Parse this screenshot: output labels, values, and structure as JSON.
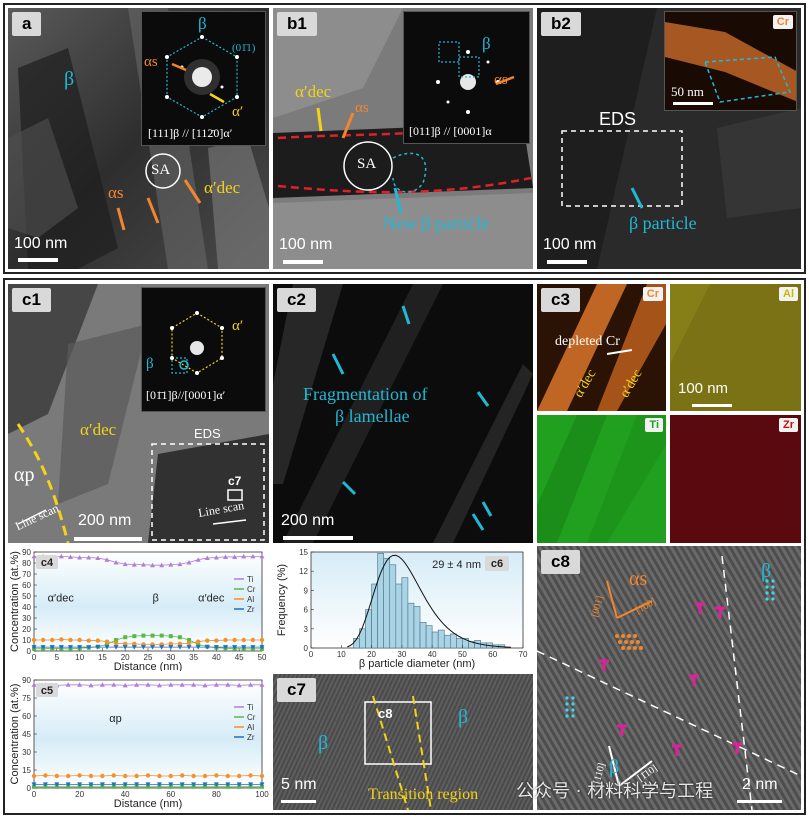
{
  "panels": {
    "a": {
      "tag": "a",
      "beta": "β",
      "inset_beta": "β",
      "inset_plane": "(01̄1)",
      "alpha_s": "αs",
      "alpha_prime": "α′",
      "inset_zone": "[111]β // [112̄0]α′",
      "sa": "SA",
      "alpha_s2": "αs",
      "alpha_dec": "α′dec",
      "scalebar": "100 nm"
    },
    "b1": {
      "tag": "b1",
      "inset_beta": "β",
      "inset_alpha_s": "αs",
      "inset_zone": "[011]β // [0001]α",
      "alpha_dec": "α′dec",
      "alpha_s": "αs",
      "sa": "SA",
      "new_beta": "New β particle",
      "scalebar": "100 nm"
    },
    "b2": {
      "tag": "b2",
      "inset_element": "Cr",
      "inset_scalebar": "50 nm",
      "eds": "EDS",
      "beta_particle": "β particle",
      "scalebar": "100 nm"
    },
    "c1": {
      "tag": "c1",
      "alpha_prime": "α′",
      "beta": "β",
      "inset_zone": "[01̄1]β//[0001]α′",
      "alpha_dec": "α′dec",
      "eds": "EDS",
      "c7": "c7",
      "alpha_p": "αp",
      "line_scan_1": "Line scan",
      "line_scan_2": "Line scan",
      "scalebar": "200 nm"
    },
    "c2": {
      "tag": "c2",
      "caption_line1": "Fragmentation of",
      "caption_line2": "β lamellae",
      "scalebar": "200 nm"
    },
    "c3": {
      "tag": "c3",
      "maps": [
        "Cr",
        "Al",
        "Ti",
        "Zr"
      ],
      "depleted": "depleted Cr",
      "alpha_dec_1": "α′dec",
      "alpha_dec_2": "α′dec",
      "scalebar": "100 nm"
    },
    "c7": {
      "tag": "c7",
      "c8": "c8",
      "beta_left": "β",
      "beta_right": "β",
      "transition": "Transition region",
      "scalebar": "5 nm"
    },
    "c8": {
      "tag": "c8",
      "alpha_s": "αs",
      "beta_top": "β",
      "beta_bottom": "β",
      "dir1": "[001]",
      "dir2": "[100]",
      "dir3": "[110]",
      "dir4": "[1̄10]",
      "scalebar": "2 nm"
    }
  },
  "watermark": "公众号 · 材料科学与工程",
  "colors": {
    "cyan": "#21b8d6",
    "yellow": "#f2d318",
    "orange": "#f2862d",
    "red_dash": "#e0202a",
    "magenta": "#e0209a"
  },
  "chart_data": [
    {
      "id": "c4",
      "type": "line",
      "tag": "c4",
      "xlabel": "Distance (nm)",
      "ylabel": "Concentration (at.%)",
      "xlim": [
        0,
        50
      ],
      "ylim": [
        0,
        90
      ],
      "xticks": [
        0,
        5,
        10,
        15,
        20,
        25,
        30,
        35,
        40,
        45,
        50
      ],
      "yticks": [
        0,
        10,
        20,
        30,
        40,
        50,
        60,
        70,
        80,
        90
      ],
      "annotations": [
        "α′dec",
        "β",
        "α′dec"
      ],
      "x": [
        0,
        2,
        4,
        6,
        8,
        10,
        12,
        14,
        16,
        18,
        20,
        22,
        24,
        26,
        28,
        30,
        32,
        34,
        36,
        38,
        40,
        42,
        44,
        46,
        48,
        50
      ],
      "series": [
        {
          "name": "Ti",
          "color": "#b07fd6",
          "values": [
            86,
            86,
            85.5,
            86,
            85.5,
            85,
            85,
            84.5,
            83,
            80.5,
            79,
            78.5,
            78.5,
            78,
            78,
            78.5,
            79,
            80.5,
            83,
            84.5,
            85,
            85.5,
            85.5,
            86,
            86,
            86
          ]
        },
        {
          "name": "Cr",
          "color": "#5ab84a",
          "values": [
            2,
            2,
            2.5,
            2,
            2,
            2.5,
            3,
            4,
            6,
            10,
            12.5,
            13.5,
            14,
            14,
            14,
            13.5,
            12.5,
            10,
            6,
            4,
            3,
            2.5,
            2,
            2,
            2,
            2
          ]
        },
        {
          "name": "Al",
          "color": "#f5902a",
          "values": [
            10,
            10,
            10,
            10.5,
            10,
            10,
            9.5,
            9.5,
            8.5,
            7,
            6.5,
            6.5,
            6,
            6,
            6,
            6.5,
            6.5,
            7,
            8.5,
            9.5,
            9.5,
            10,
            10,
            10,
            10,
            10
          ]
        },
        {
          "name": "Zr",
          "color": "#1f6fc4",
          "values": [
            3.5,
            3.5,
            3.5,
            3.5,
            3.5,
            3.5,
            3.5,
            3.5,
            3.5,
            3.5,
            3.5,
            3.5,
            3.5,
            3.5,
            3.5,
            3.5,
            3.5,
            3.5,
            3.5,
            3.5,
            3.5,
            3.5,
            3.5,
            3.5,
            3.5,
            3.5
          ]
        }
      ]
    },
    {
      "id": "c5",
      "type": "line",
      "tag": "c5",
      "xlabel": "Distance (nm)",
      "ylabel": "Concentration (at.%)",
      "xlim": [
        0,
        100
      ],
      "ylim": [
        0,
        90
      ],
      "xticks": [
        0,
        20,
        40,
        60,
        80,
        100
      ],
      "yticks": [
        0,
        15,
        30,
        45,
        60,
        75,
        90
      ],
      "annotations": [
        "αp"
      ],
      "x": [
        0,
        5,
        10,
        15,
        20,
        25,
        30,
        35,
        40,
        45,
        50,
        55,
        60,
        65,
        70,
        75,
        80,
        85,
        90,
        95,
        100
      ],
      "series": [
        {
          "name": "Ti",
          "color": "#b07fd6",
          "values": [
            86,
            86,
            85.5,
            86,
            86,
            85.5,
            86,
            86,
            85.5,
            86,
            86,
            85.5,
            86,
            86,
            86,
            85.5,
            86,
            86,
            85.5,
            86,
            86
          ]
        },
        {
          "name": "Cr",
          "color": "#5ab84a",
          "values": [
            1,
            1,
            1,
            1,
            1,
            1,
            1,
            1,
            1,
            1,
            1,
            1,
            1,
            1,
            1,
            1,
            1,
            1,
            1,
            1,
            1
          ]
        },
        {
          "name": "Al",
          "color": "#f5902a",
          "values": [
            10,
            10.5,
            10,
            10,
            10.5,
            10,
            10,
            10.5,
            10,
            10,
            10.5,
            10,
            10,
            10.5,
            10,
            10,
            10.5,
            10,
            10,
            10.5,
            10
          ]
        },
        {
          "name": "Zr",
          "color": "#1f6fc4",
          "values": [
            3,
            3,
            3,
            3,
            3,
            3,
            3,
            3,
            3,
            3,
            3,
            3,
            3,
            3,
            3,
            3,
            3,
            3,
            3,
            3,
            3
          ]
        }
      ]
    },
    {
      "id": "c6",
      "type": "bar",
      "tag": "c6",
      "xlabel": "β particle diameter (nm)",
      "ylabel": "Frequency (%)",
      "xlim": [
        0,
        70
      ],
      "ylim": [
        0,
        15
      ],
      "xticks": [
        0,
        10,
        20,
        30,
        40,
        50,
        60,
        70
      ],
      "yticks": [
        0,
        3,
        6,
        9,
        12,
        15
      ],
      "annotation": "29 ± 4 nm",
      "bin_width": 2,
      "bin_start": [
        14,
        16,
        18,
        20,
        22,
        24,
        26,
        28,
        30,
        32,
        34,
        36,
        38,
        40,
        42,
        44,
        46,
        48,
        50,
        52,
        54,
        56,
        58,
        60,
        62
      ],
      "values": [
        1.5,
        3,
        6,
        10,
        14.8,
        14,
        13,
        10,
        11,
        7,
        6.5,
        4,
        3.5,
        2.5,
        2.8,
        2,
        2.2,
        1.5,
        1.5,
        1,
        1.2,
        0.8,
        0.8,
        0.5,
        0.5
      ],
      "fit": {
        "type": "lognormal",
        "peak_x": 26,
        "peak_y": 14.5
      }
    }
  ]
}
